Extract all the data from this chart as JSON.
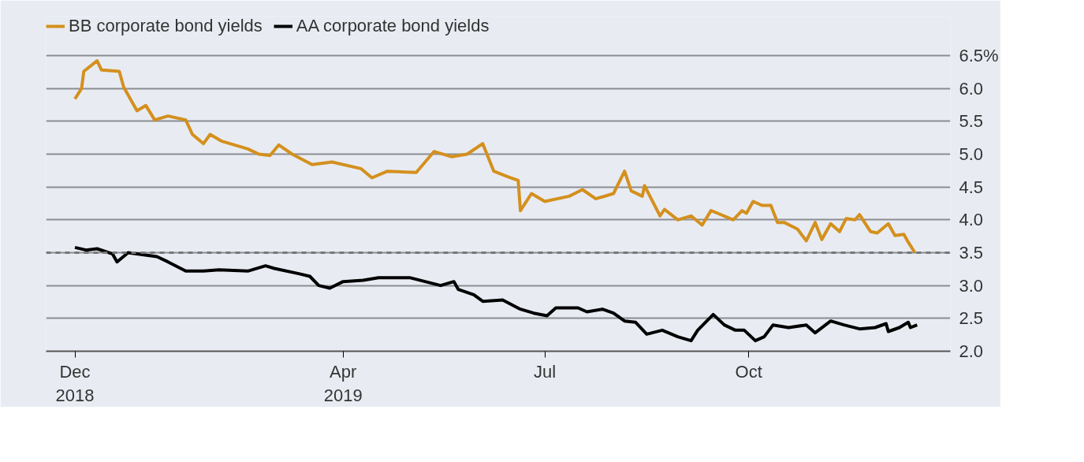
{
  "chart_data": {
    "type": "line",
    "x": [
      "2018-12-01",
      "2018-12-04",
      "2018-12-05",
      "2018-12-11",
      "2018-12-13",
      "2018-12-21",
      "2018-12-23",
      "2018-12-29",
      "2019-01-02",
      "2019-01-06",
      "2019-01-12",
      "2019-01-20",
      "2019-01-23",
      "2019-01-28",
      "2019-01-31",
      "2019-02-05",
      "2019-02-17",
      "2019-02-22",
      "2019-02-27",
      "2019-03-03",
      "2019-03-09",
      "2019-03-18",
      "2019-03-27",
      "2019-04-09",
      "2019-04-14",
      "2019-04-21",
      "2019-05-04",
      "2019-05-12",
      "2019-05-20",
      "2019-05-27",
      "2019-06-03",
      "2019-06-08",
      "2019-06-14",
      "2019-06-19",
      "2019-06-20",
      "2019-06-25",
      "2019-07-01",
      "2019-07-12",
      "2019-07-18",
      "2019-07-24",
      "2019-08-01",
      "2019-08-06",
      "2019-08-09",
      "2019-08-14",
      "2019-08-15",
      "2019-08-22",
      "2019-08-24",
      "2019-08-30",
      "2019-09-05",
      "2019-09-10",
      "2019-09-14",
      "2019-09-17",
      "2019-09-24",
      "2019-09-28",
      "2019-09-30",
      "2019-10-03",
      "2019-10-07",
      "2019-10-11",
      "2019-10-14",
      "2019-10-17",
      "2019-10-23",
      "2019-10-27",
      "2019-10-31",
      "2019-11-03",
      "2019-11-07",
      "2019-11-11",
      "2019-11-14",
      "2019-11-18",
      "2019-11-20",
      "2019-11-25",
      "2019-11-28",
      "2019-12-03",
      "2019-12-06",
      "2019-12-10",
      "2019-12-12",
      "2019-12-15"
    ],
    "series": [
      {
        "name": "BB corporate bond yields",
        "color": "#d4901e",
        "values": [
          5.84,
          6.0,
          6.26,
          6.42,
          6.28,
          6.26,
          6.02,
          5.66,
          5.74,
          5.52,
          5.58,
          5.52,
          5.3,
          5.16,
          5.3,
          5.2,
          5.08,
          5.0,
          4.98,
          5.14,
          5.0,
          4.84,
          4.88,
          4.78,
          4.64,
          4.74,
          4.72,
          5.04,
          4.96,
          5.0,
          5.16,
          4.74,
          4.66,
          4.6,
          4.14,
          4.4,
          4.28,
          4.36,
          4.46,
          4.32,
          4.4,
          4.74,
          4.44,
          4.36,
          4.52,
          4.06,
          4.16,
          4.0,
          4.06,
          3.92,
          4.14,
          4.1,
          4.0,
          4.14,
          4.1,
          4.28,
          4.22,
          4.22,
          3.96,
          3.96,
          3.86,
          3.68,
          3.96,
          3.7,
          3.94,
          3.82,
          4.02,
          4.0,
          4.08,
          3.82,
          3.8,
          3.94,
          3.76,
          3.78,
          3.66,
          3.5
        ]
      },
      {
        "name": "AA corporate bond yields",
        "color": "#000000",
        "x": [
          "2018-12-01",
          "2018-12-06",
          "2018-12-11",
          "2018-12-18",
          "2018-12-20",
          "2018-12-25",
          "2019-01-07",
          "2019-01-12",
          "2019-01-20",
          "2019-01-28",
          "2019-02-04",
          "2019-02-17",
          "2019-02-25",
          "2019-03-01",
          "2019-03-12",
          "2019-03-17",
          "2019-03-21",
          "2019-03-26",
          "2019-04-01",
          "2019-04-10",
          "2019-04-17",
          "2019-05-01",
          "2019-05-15",
          "2019-05-21",
          "2019-05-23",
          "2019-05-30",
          "2019-06-03",
          "2019-06-12",
          "2019-06-20",
          "2019-06-26",
          "2019-07-02",
          "2019-07-06",
          "2019-07-16",
          "2019-07-20",
          "2019-07-27",
          "2019-08-01",
          "2019-08-06",
          "2019-08-11",
          "2019-08-16",
          "2019-08-23",
          "2019-08-30",
          "2019-09-05",
          "2019-09-08",
          "2019-09-15",
          "2019-09-20",
          "2019-09-25",
          "2019-09-29",
          "2019-10-04",
          "2019-10-08",
          "2019-10-12",
          "2019-10-19",
          "2019-10-27",
          "2019-10-31",
          "2019-11-07",
          "2019-11-13",
          "2019-11-20",
          "2019-11-27",
          "2019-12-02",
          "2019-12-03",
          "2019-12-08",
          "2019-12-12",
          "2019-12-13",
          "2019-12-16"
        ],
        "values": [
          3.58,
          3.54,
          3.56,
          3.48,
          3.36,
          3.5,
          3.44,
          3.36,
          3.22,
          3.22,
          3.24,
          3.22,
          3.3,
          3.26,
          3.18,
          3.14,
          3.0,
          2.96,
          3.06,
          3.08,
          3.12,
          3.12,
          3.0,
          3.06,
          2.94,
          2.86,
          2.76,
          2.78,
          2.64,
          2.58,
          2.54,
          2.66,
          2.66,
          2.6,
          2.64,
          2.58,
          2.46,
          2.44,
          2.26,
          2.32,
          2.22,
          2.16,
          2.32,
          2.56,
          2.4,
          2.32,
          2.32,
          2.16,
          2.22,
          2.4,
          2.36,
          2.4,
          2.28,
          2.46,
          2.4,
          2.34,
          2.36,
          2.42,
          2.3,
          2.36,
          2.44,
          2.36,
          2.4
        ]
      }
    ],
    "xlim": [
      "2018-11-18",
      "2019-12-31"
    ],
    "xticks": [
      {
        "value": "2018-12-01",
        "label": "Dec\n2018"
      },
      {
        "value": "2019-04-01",
        "label": "Apr\n2019"
      },
      {
        "value": "2019-07-01",
        "label": "Jul"
      },
      {
        "value": "2019-10-01",
        "label": "Oct"
      }
    ],
    "ylim": [
      2.0,
      7.1
    ],
    "yticks": [
      {
        "value": 2.0,
        "label": "2.0"
      },
      {
        "value": 2.5,
        "label": "2.5"
      },
      {
        "value": 3.0,
        "label": "3.0"
      },
      {
        "value": 3.5,
        "label": "3.5"
      },
      {
        "value": 4.0,
        "label": "4.0"
      },
      {
        "value": 4.5,
        "label": "4.5"
      },
      {
        "value": 5.0,
        "label": "5.0"
      },
      {
        "value": 5.5,
        "label": "5.5"
      },
      {
        "value": 6.0,
        "label": "6.0"
      },
      {
        "value": 6.5,
        "label": "6.5%"
      }
    ],
    "ref_lines": [
      {
        "axis": "y",
        "value": 3.5,
        "color": "#777777",
        "line_style": "dashed"
      }
    ],
    "grid": "y",
    "legend": "top left",
    "marker": "none",
    "line_style": "solid"
  }
}
